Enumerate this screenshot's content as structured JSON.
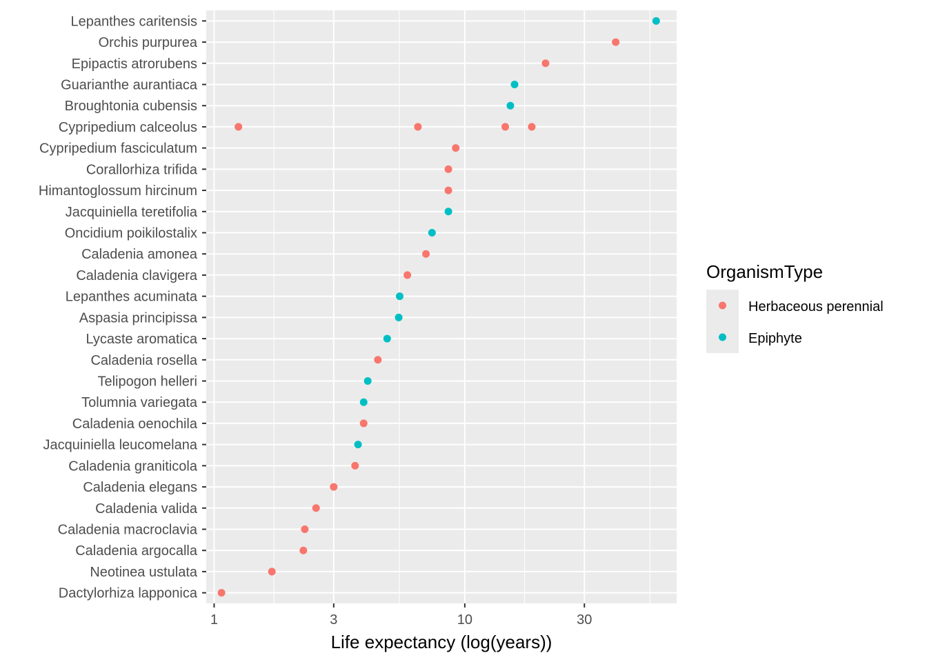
{
  "chart_data": {
    "type": "scatter",
    "title": "",
    "xlabel": "Life expectancy (log(years))",
    "ylabel": "",
    "x_scale": "log10",
    "xlim": [
      0.93,
      70
    ],
    "x_ticks": [
      1,
      3,
      10,
      30
    ],
    "x_tick_labels": [
      "1",
      "3",
      "10",
      "30"
    ],
    "grid": true,
    "legend": {
      "title": "OrganismType",
      "placement": "right",
      "entries": [
        {
          "name": "Herbaceous perennial",
          "color": "#F8766D"
        },
        {
          "name": "Epiphyte",
          "color": "#00BFC4"
        }
      ]
    },
    "categories": [
      "Lepanthes caritensis",
      "Orchis purpurea",
      "Epipactis atrorubens",
      "Guarianthe aurantiaca",
      "Broughtonia cubensis",
      "Cypripedium calceolus",
      "Cypripedium fasciculatum",
      "Corallorhiza trifida",
      "Himantoglossum hircinum",
      "Jacquiniella teretifolia",
      "Oncidium poikilostalix",
      "Caladenia amonea",
      "Caladenia clavigera",
      "Lepanthes acuminata",
      "Aspasia principissa",
      "Lycaste aromatica",
      "Caladenia rosella",
      "Telipogon helleri",
      "Tolumnia variegata",
      "Caladenia oenochila",
      "Jacquiniella leucomelana",
      "Caladenia graniticola",
      "Caladenia elegans",
      "Caladenia valida",
      "Caladenia macroclavia",
      "Caladenia argocalla",
      "Neotinea ustulata",
      "Dactylorhiza lapponica"
    ],
    "series": [
      {
        "name": "Herbaceous perennial",
        "color": "#F8766D",
        "points": [
          {
            "category": "Orchis purpurea",
            "x": 40
          },
          {
            "category": "Epipactis atrorubens",
            "x": 21
          },
          {
            "category": "Cypripedium calceolus",
            "x": 1.25
          },
          {
            "category": "Cypripedium calceolus",
            "x": 6.5
          },
          {
            "category": "Cypripedium calceolus",
            "x": 14.5
          },
          {
            "category": "Cypripedium calceolus",
            "x": 18.5
          },
          {
            "category": "Cypripedium fasciculatum",
            "x": 9.2
          },
          {
            "category": "Corallorhiza trifida",
            "x": 8.6
          },
          {
            "category": "Himantoglossum hircinum",
            "x": 8.6
          },
          {
            "category": "Caladenia amonea",
            "x": 7.0
          },
          {
            "category": "Caladenia clavigera",
            "x": 5.9
          },
          {
            "category": "Caladenia rosella",
            "x": 4.5
          },
          {
            "category": "Caladenia oenochila",
            "x": 3.95
          },
          {
            "category": "Caladenia graniticola",
            "x": 3.65
          },
          {
            "category": "Caladenia elegans",
            "x": 3.0
          },
          {
            "category": "Caladenia valida",
            "x": 2.55
          },
          {
            "category": "Caladenia macroclavia",
            "x": 2.3
          },
          {
            "category": "Caladenia argocalla",
            "x": 2.27
          },
          {
            "category": "Neotinea ustulata",
            "x": 1.7
          },
          {
            "category": "Dactylorhiza lapponica",
            "x": 1.07
          }
        ]
      },
      {
        "name": "Epiphyte",
        "color": "#00BFC4",
        "points": [
          {
            "category": "Lepanthes caritensis",
            "x": 58
          },
          {
            "category": "Guarianthe aurantiaca",
            "x": 15.8
          },
          {
            "category": "Broughtonia cubensis",
            "x": 15.2
          },
          {
            "category": "Jacquiniella teretifolia",
            "x": 8.6
          },
          {
            "category": "Oncidium poikilostalix",
            "x": 7.4
          },
          {
            "category": "Lepanthes acuminata",
            "x": 5.5
          },
          {
            "category": "Aspasia principissa",
            "x": 5.45
          },
          {
            "category": "Lycaste aromatica",
            "x": 4.9
          },
          {
            "category": "Telipogon helleri",
            "x": 4.1
          },
          {
            "category": "Tolumnia variegata",
            "x": 3.95
          },
          {
            "category": "Jacquiniella leucomelana",
            "x": 3.75
          }
        ]
      }
    ]
  }
}
